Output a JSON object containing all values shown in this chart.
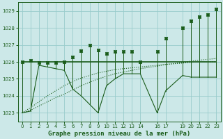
{
  "title": "Graphe pression niveau de la mer (hPa)",
  "bg_color": "#cce8e8",
  "grid_color": "#99cccc",
  "line_color": "#1a5c1a",
  "ylim": [
    1022.5,
    1029.5
  ],
  "yticks": [
    1023,
    1024,
    1025,
    1026,
    1027,
    1028,
    1029
  ],
  "xlim": [
    -0.5,
    23.5
  ],
  "xticks": [
    0,
    1,
    2,
    3,
    4,
    5,
    6,
    7,
    8,
    9,
    10,
    11,
    12,
    13,
    14,
    16,
    17,
    19,
    20,
    21,
    22,
    23
  ],
  "hours": [
    0,
    1,
    2,
    3,
    4,
    5,
    6,
    7,
    8,
    9,
    10,
    11,
    12,
    13,
    14,
    16,
    17,
    19,
    20,
    21,
    22,
    23
  ],
  "peak": [
    1026.0,
    1026.1,
    1025.95,
    1025.95,
    1025.95,
    1026.0,
    1026.3,
    1026.65,
    1027.0,
    1026.7,
    1026.5,
    1026.6,
    1026.6,
    1026.6,
    1026.0,
    1026.6,
    1027.4,
    1028.0,
    1028.4,
    1028.65,
    1028.8,
    1029.1
  ],
  "low": [
    1023.0,
    1023.1,
    1025.8,
    1025.7,
    1025.6,
    1025.5,
    1024.4,
    1024.0,
    1023.5,
    1023.0,
    1024.6,
    1025.0,
    1025.3,
    1025.3,
    1025.3,
    1023.0,
    1024.3,
    1025.2,
    1025.1,
    1025.1,
    1025.1,
    1025.1
  ],
  "flat": [
    1026.0,
    1026.0,
    1026.0,
    1026.0,
    1026.0,
    1026.0,
    1026.0,
    1026.0,
    1026.0,
    1026.0,
    1026.0,
    1026.0,
    1026.0,
    1026.0,
    1026.0,
    1026.0,
    1026.0,
    1026.0,
    1026.0,
    1026.0,
    1026.0,
    1026.0
  ],
  "trend1": [
    1023.0,
    1023.15,
    1023.4,
    1023.65,
    1023.9,
    1024.1,
    1024.35,
    1024.6,
    1024.8,
    1025.0,
    1025.15,
    1025.3,
    1025.4,
    1025.5,
    1025.6,
    1025.75,
    1025.85,
    1025.95,
    1026.05,
    1026.1,
    1026.15,
    1026.2
  ],
  "trend2": [
    1023.0,
    1023.3,
    1023.65,
    1024.0,
    1024.3,
    1024.6,
    1024.85,
    1025.05,
    1025.2,
    1025.35,
    1025.45,
    1025.55,
    1025.6,
    1025.65,
    1025.7,
    1025.8,
    1025.85,
    1025.93,
    1025.97,
    1026.0,
    1026.0,
    1026.0
  ],
  "low_connect": [
    1023.0,
    1023.1,
    1025.8,
    1025.7,
    1025.6,
    1025.5,
    1024.4,
    1024.0,
    1023.5,
    1023.0,
    1024.6,
    1025.0,
    1025.3,
    1025.3,
    1025.3,
    1023.0,
    1024.3,
    1025.2,
    1025.1,
    1025.1,
    1025.1,
    1025.1
  ]
}
